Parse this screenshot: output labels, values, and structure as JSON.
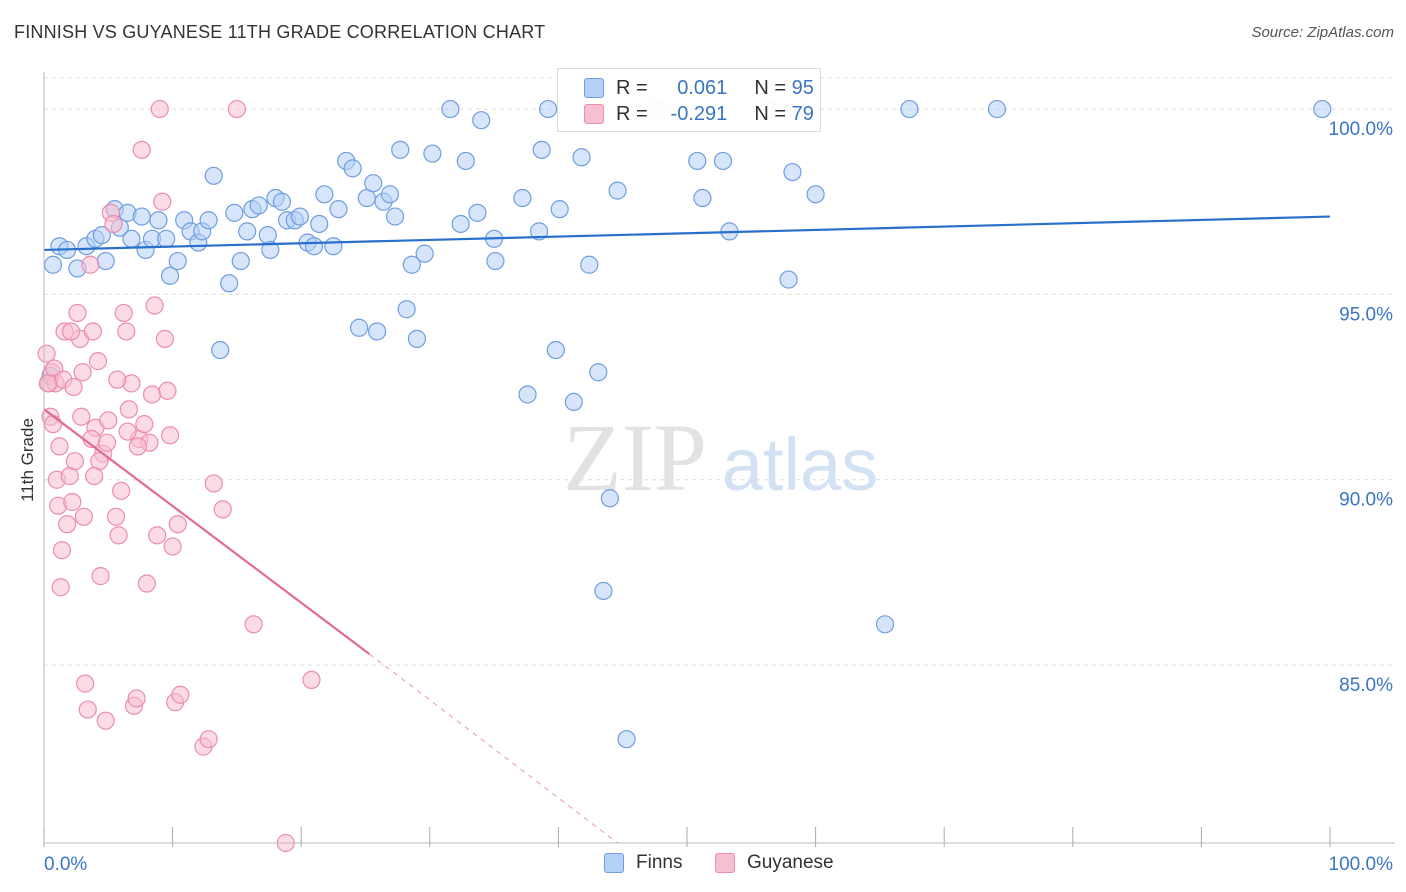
{
  "header": {
    "title": "FINNISH VS GUYANESE 11TH GRADE CORRELATION CHART",
    "source": "Source: ZipAtlas.com"
  },
  "watermark": {
    "zip": "ZIP",
    "atlas": "atlas"
  },
  "legend": {
    "r_label": "R =",
    "n_label": "N =",
    "finns": {
      "r": "0.061",
      "n": "95"
    },
    "guyanese": {
      "r": "-0.291",
      "n": "79"
    }
  },
  "colors": {
    "finns_fill": "#b5d0f5",
    "finns_stroke": "#6f9ee0",
    "finns_line": "#2a6fcc",
    "guyanese_fill": "#f7bfd2",
    "guyanese_stroke": "#ec8cae",
    "guyanese_line": "#e06b95",
    "axis_text": "#3a75c4"
  },
  "chart_data": {
    "type": "scatter",
    "title": "FINNISH VS GUYANESE 11TH GRADE CORRELATION CHART",
    "xlabel": "",
    "ylabel": "11th Grade",
    "xlim": [
      0,
      100
    ],
    "ylim": [
      80.2,
      101.0
    ],
    "x_tick_labels": [
      "0.0%",
      "100.0%"
    ],
    "y_ticks": [
      85,
      90,
      95,
      100
    ],
    "y_tick_labels": [
      "85.0%",
      "90.0%",
      "95.0%",
      "100.0%"
    ],
    "grid": true,
    "legend_position": "top-center",
    "series": [
      {
        "name": "Finns",
        "r": 0.061,
        "n": 95,
        "trend": {
          "x": [
            0,
            100
          ],
          "y": [
            96.2,
            97.1
          ],
          "dash_to": null
        },
        "points": [
          [
            0.7,
            95.8
          ],
          [
            1.2,
            96.3
          ],
          [
            1.8,
            96.2
          ],
          [
            2.6,
            95.7
          ],
          [
            3.3,
            96.3
          ],
          [
            4.0,
            96.5
          ],
          [
            4.5,
            96.6
          ],
          [
            4.8,
            95.9
          ],
          [
            5.5,
            97.3
          ],
          [
            5.9,
            96.8
          ],
          [
            6.5,
            97.2
          ],
          [
            6.8,
            96.5
          ],
          [
            7.6,
            97.1
          ],
          [
            7.9,
            96.2
          ],
          [
            8.4,
            96.5
          ],
          [
            8.9,
            97.0
          ],
          [
            9.5,
            96.5
          ],
          [
            9.8,
            95.5
          ],
          [
            10.4,
            95.9
          ],
          [
            10.9,
            97.0
          ],
          [
            11.4,
            96.7
          ],
          [
            12.0,
            96.4
          ],
          [
            12.3,
            96.7
          ],
          [
            12.8,
            97.0
          ],
          [
            13.2,
            98.2
          ],
          [
            13.7,
            93.5
          ],
          [
            14.4,
            95.3
          ],
          [
            14.8,
            97.2
          ],
          [
            15.3,
            95.9
          ],
          [
            15.8,
            96.7
          ],
          [
            16.2,
            97.3
          ],
          [
            16.7,
            97.4
          ],
          [
            17.4,
            96.6
          ],
          [
            17.6,
            96.2
          ],
          [
            18.0,
            97.6
          ],
          [
            18.5,
            97.5
          ],
          [
            18.9,
            97.0
          ],
          [
            19.5,
            97.0
          ],
          [
            19.9,
            97.1
          ],
          [
            20.5,
            96.4
          ],
          [
            21.0,
            96.3
          ],
          [
            21.4,
            96.9
          ],
          [
            21.8,
            97.7
          ],
          [
            22.5,
            96.3
          ],
          [
            22.9,
            97.3
          ],
          [
            23.5,
            98.6
          ],
          [
            24.0,
            98.4
          ],
          [
            24.5,
            94.1
          ],
          [
            25.1,
            97.6
          ],
          [
            25.6,
            98.0
          ],
          [
            25.9,
            94.0
          ],
          [
            26.4,
            97.5
          ],
          [
            26.9,
            97.7
          ],
          [
            27.3,
            97.1
          ],
          [
            27.7,
            98.9
          ],
          [
            28.2,
            94.6
          ],
          [
            28.6,
            95.8
          ],
          [
            29.0,
            93.8
          ],
          [
            29.6,
            96.1
          ],
          [
            30.2,
            98.8
          ],
          [
            31.6,
            100.0
          ],
          [
            32.4,
            96.9
          ],
          [
            32.8,
            98.6
          ],
          [
            33.7,
            97.2
          ],
          [
            34.0,
            99.7
          ],
          [
            35.0,
            96.5
          ],
          [
            35.1,
            95.9
          ],
          [
            37.2,
            97.6
          ],
          [
            37.6,
            92.3
          ],
          [
            38.5,
            96.7
          ],
          [
            38.7,
            98.9
          ],
          [
            39.2,
            100.0
          ],
          [
            39.8,
            93.5
          ],
          [
            40.1,
            97.3
          ],
          [
            41.2,
            92.1
          ],
          [
            41.8,
            98.7
          ],
          [
            42.4,
            95.8
          ],
          [
            43.1,
            92.9
          ],
          [
            43.5,
            87.0
          ],
          [
            44.0,
            89.5
          ],
          [
            44.6,
            97.8
          ],
          [
            45.3,
            83.0
          ],
          [
            47.6,
            100.0
          ],
          [
            50.8,
            98.6
          ],
          [
            51.2,
            97.6
          ],
          [
            52.8,
            98.6
          ],
          [
            53.3,
            96.7
          ],
          [
            56.4,
            100.0
          ],
          [
            57.9,
            95.4
          ],
          [
            58.2,
            98.3
          ],
          [
            59.0,
            100.0
          ],
          [
            60.0,
            97.7
          ],
          [
            65.4,
            86.1
          ],
          [
            67.3,
            100.0
          ],
          [
            74.1,
            100.0
          ],
          [
            99.4,
            100.0
          ],
          [
            0.5,
            92.8
          ]
        ]
      },
      {
        "name": "Guyanese",
        "r": -0.291,
        "n": 79,
        "trend": {
          "x": [
            0,
            25.3
          ],
          "y": [
            91.9,
            85.3
          ],
          "dash_to": [
            44.6,
            80.2
          ]
        },
        "points": [
          [
            0.2,
            93.4
          ],
          [
            0.4,
            92.6
          ],
          [
            0.5,
            91.7
          ],
          [
            0.6,
            92.9
          ],
          [
            0.7,
            91.5
          ],
          [
            0.8,
            93.0
          ],
          [
            1.0,
            90.0
          ],
          [
            1.1,
            89.3
          ],
          [
            1.3,
            87.1
          ],
          [
            1.4,
            88.1
          ],
          [
            1.6,
            94.0
          ],
          [
            1.8,
            88.8
          ],
          [
            2.0,
            90.1
          ],
          [
            2.2,
            89.4
          ],
          [
            2.4,
            90.5
          ],
          [
            2.6,
            94.5
          ],
          [
            2.8,
            93.8
          ],
          [
            3.0,
            92.9
          ],
          [
            3.2,
            84.5
          ],
          [
            3.4,
            83.8
          ],
          [
            3.6,
            95.8
          ],
          [
            3.8,
            94.0
          ],
          [
            4.0,
            91.4
          ],
          [
            4.2,
            93.2
          ],
          [
            4.4,
            87.4
          ],
          [
            4.6,
            90.7
          ],
          [
            4.8,
            83.5
          ],
          [
            5.0,
            91.6
          ],
          [
            5.2,
            97.2
          ],
          [
            5.4,
            96.9
          ],
          [
            5.6,
            89.0
          ],
          [
            5.8,
            88.5
          ],
          [
            6.0,
            89.7
          ],
          [
            6.2,
            94.5
          ],
          [
            6.4,
            94.0
          ],
          [
            6.6,
            91.9
          ],
          [
            6.8,
            92.6
          ],
          [
            7.0,
            83.9
          ],
          [
            7.2,
            84.1
          ],
          [
            7.4,
            91.1
          ],
          [
            7.6,
            98.9
          ],
          [
            7.8,
            91.5
          ],
          [
            8.0,
            87.2
          ],
          [
            8.2,
            91.0
          ],
          [
            8.4,
            92.3
          ],
          [
            8.6,
            94.7
          ],
          [
            8.8,
            88.5
          ],
          [
            9.0,
            100.0
          ],
          [
            9.2,
            97.5
          ],
          [
            9.4,
            93.8
          ],
          [
            9.6,
            92.4
          ],
          [
            9.8,
            91.2
          ],
          [
            10.0,
            88.2
          ],
          [
            10.2,
            84.0
          ],
          [
            10.4,
            88.8
          ],
          [
            10.6,
            84.2
          ],
          [
            12.4,
            82.8
          ],
          [
            12.8,
            83.0
          ],
          [
            13.2,
            89.9
          ],
          [
            13.9,
            89.2
          ],
          [
            15.0,
            100.0
          ],
          [
            16.3,
            86.1
          ],
          [
            18.8,
            80.2
          ],
          [
            20.8,
            84.6
          ],
          [
            0.9,
            92.6
          ],
          [
            1.5,
            92.7
          ],
          [
            2.1,
            94.0
          ],
          [
            2.9,
            91.7
          ],
          [
            3.7,
            91.1
          ],
          [
            4.3,
            90.5
          ],
          [
            4.9,
            91.0
          ],
          [
            5.7,
            92.7
          ],
          [
            6.5,
            91.3
          ],
          [
            7.3,
            90.9
          ],
          [
            1.2,
            90.9
          ],
          [
            2.3,
            92.5
          ],
          [
            3.1,
            89.0
          ],
          [
            3.9,
            90.1
          ],
          [
            0.3,
            92.6
          ]
        ]
      }
    ]
  },
  "bottom_legend": {
    "finns_label": "Finns",
    "guyanese_label": "Guyanese"
  }
}
